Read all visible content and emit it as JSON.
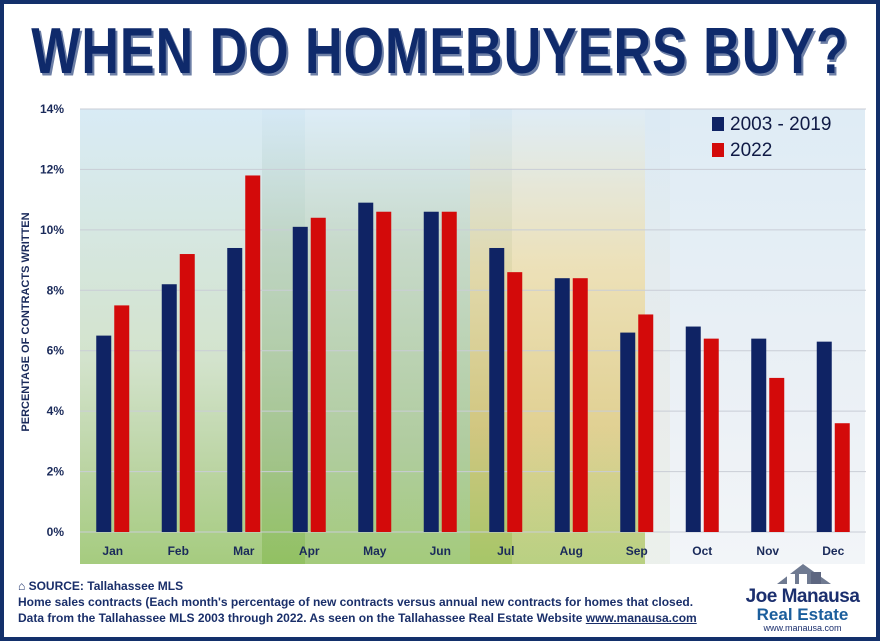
{
  "title": "WHEN DO HOMEBUYERS BUY?",
  "chart_data": {
    "type": "bar",
    "categories": [
      "Jan",
      "Feb",
      "Mar",
      "Apr",
      "May",
      "Jun",
      "Jul",
      "Aug",
      "Sep",
      "Oct",
      "Nov",
      "Dec"
    ],
    "series": [
      {
        "name": "2003 - 2019",
        "color": "#0f2364",
        "values": [
          6.5,
          8.2,
          9.4,
          10.1,
          10.9,
          10.6,
          9.4,
          8.4,
          6.6,
          6.8,
          6.4,
          6.3
        ]
      },
      {
        "name": "2022",
        "color": "#d30a0a",
        "values": [
          7.5,
          9.2,
          11.8,
          10.4,
          10.6,
          10.6,
          8.6,
          8.4,
          7.2,
          6.4,
          5.1,
          3.6
        ]
      }
    ],
    "ylabel": "PERCENTAGE OF CONTRACTS WRITTEN",
    "xlabel": "",
    "ylim": [
      0,
      14
    ],
    "yticks": [
      "0%",
      "2%",
      "4%",
      "6%",
      "8%",
      "10%",
      "12%",
      "14%"
    ],
    "grid": true,
    "legend_position": "top-right"
  },
  "source": {
    "label": "SOURCE: Tallahassee MLS",
    "text": "Home sales contracts (Each month's percentage of new contracts versus annual new contracts for homes that closed. Data from the Tallahassee MLS 2003 through 2022.  As seen on the Tallahassee Real Estate Website ",
    "url": "www.manausa.com"
  },
  "logo": {
    "name": "Joe Manausa",
    "subtitle": "Real Estate",
    "site": "www.manausa.com"
  },
  "colors": {
    "navy": "#0f2364",
    "red": "#d30a0a",
    "title": "#0f2a6b",
    "border": "#13306b"
  }
}
